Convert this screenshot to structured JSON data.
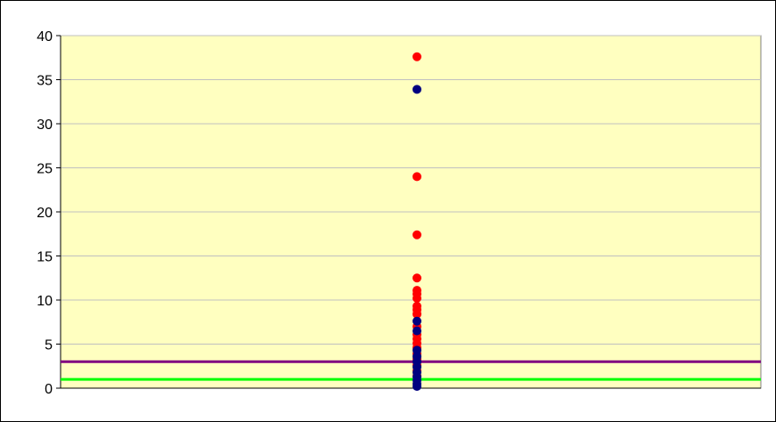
{
  "chart_data": {
    "type": "scatter",
    "title": "",
    "xlabel": "",
    "ylabel": "",
    "ylim": [
      0,
      40
    ],
    "yticks": [
      "0",
      "5",
      "10",
      "15",
      "20",
      "25",
      "30",
      "35",
      "40"
    ],
    "grid": true,
    "legend": "none",
    "colors": {
      "plot_background": "#ffffc0",
      "gridline": "#c0c0c0",
      "red_series": "#ff0000",
      "blue_series": "#000080",
      "upper_threshold": "#800080",
      "lower_threshold": "#00ff00"
    },
    "series": [
      {
        "color": "#ff0000",
        "points": [
          {
            "x": 0,
            "y": 37.6
          },
          {
            "x": 0,
            "y": 24.0
          },
          {
            "x": 0,
            "y": 17.4
          },
          {
            "x": 0,
            "y": 12.5
          },
          {
            "x": 0,
            "y": 11.1
          },
          {
            "x": 0,
            "y": 10.7
          },
          {
            "x": 0,
            "y": 10.2
          },
          {
            "x": 0,
            "y": 9.3
          },
          {
            "x": 0,
            "y": 8.9
          },
          {
            "x": 0,
            "y": 8.4
          },
          {
            "x": 0,
            "y": 7.0
          },
          {
            "x": 0,
            "y": 6.1
          },
          {
            "x": 0,
            "y": 5.6
          },
          {
            "x": 0,
            "y": 5.1
          },
          {
            "x": 0,
            "y": 4.6
          },
          {
            "x": 0,
            "y": 3.9
          },
          {
            "x": 0,
            "y": 3.3
          },
          {
            "x": 0,
            "y": 2.6
          },
          {
            "x": 0,
            "y": 2.0
          },
          {
            "x": 0,
            "y": 1.4
          }
        ]
      },
      {
        "color": "#000080",
        "points": [
          {
            "x": 0,
            "y": 33.9
          },
          {
            "x": 0,
            "y": 7.6
          },
          {
            "x": 0,
            "y": 6.5
          },
          {
            "x": 0,
            "y": 4.3
          },
          {
            "x": 0,
            "y": 3.6
          },
          {
            "x": 0,
            "y": 3.0
          },
          {
            "x": 0,
            "y": 2.4
          },
          {
            "x": 0,
            "y": 1.8
          },
          {
            "x": 0,
            "y": 1.3
          },
          {
            "x": 0,
            "y": 0.9
          },
          {
            "x": 0,
            "y": 0.5
          },
          {
            "x": 0,
            "y": 0.2
          }
        ]
      }
    ],
    "reference_lines": [
      {
        "y": 3.0,
        "color": "#800080"
      },
      {
        "y": 1.0,
        "color": "#00ff00"
      }
    ]
  }
}
